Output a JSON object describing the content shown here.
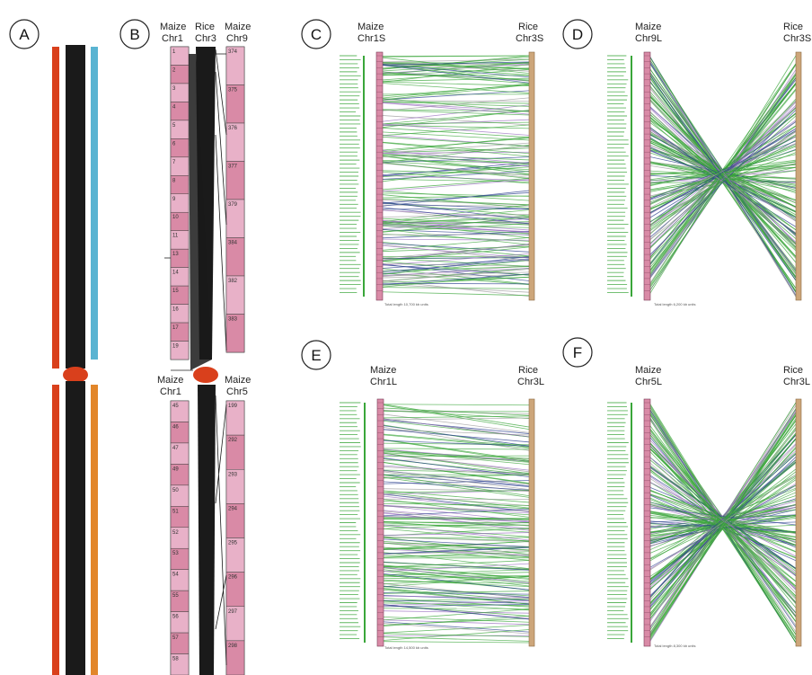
{
  "panels": [
    {
      "id": "A",
      "letter": "A"
    },
    {
      "id": "B",
      "letter": "B",
      "top_labels": [
        [
          "Maize",
          "Chr1"
        ],
        [
          "Rice",
          "Chr3"
        ],
        [
          "Maize",
          "Chr9"
        ]
      ],
      "bottom_labels": [
        [
          "Maize",
          "Chr1"
        ],
        [
          "Maize",
          "Chr5"
        ]
      ],
      "maize_chr1_short_bands": [
        "1",
        "2",
        "3",
        "4",
        "5",
        "6",
        "7",
        "8",
        "9",
        "10",
        "11",
        "13",
        "14",
        "15",
        "16",
        "17",
        "19"
      ],
      "maize_chr9_bands": [
        "374",
        "375",
        "376",
        "377",
        "379",
        "384",
        "382",
        "383"
      ],
      "maize_chr1_long_bands": [
        "45",
        "46",
        "47",
        "49",
        "50",
        "51",
        "52",
        "53",
        "54",
        "55",
        "56",
        "57",
        "58"
      ],
      "maize_chr5_bands": [
        "199",
        "292",
        "293",
        "294",
        "295",
        "296",
        "297",
        "298"
      ]
    },
    {
      "id": "C",
      "letter": "C",
      "left": [
        "Maize",
        "Chr1S"
      ],
      "right": [
        "Rice",
        "Chr3S"
      ],
      "footer": "Total length 10,700 kb units",
      "pattern": "parallel",
      "seed": 3
    },
    {
      "id": "D",
      "letter": "D",
      "left": [
        "Maize",
        "Chr9L"
      ],
      "right": [
        "Rice",
        "Chr3S"
      ],
      "footer": "Total length 6,200 kb units",
      "pattern": "inverted",
      "seed": 7
    },
    {
      "id": "E",
      "letter": "E",
      "left": [
        "Maize",
        "Chr1L"
      ],
      "right": [
        "Rice",
        "Chr3L"
      ],
      "footer": "Total length 14,500 kb units",
      "pattern": "parallel-slope",
      "seed": 11
    },
    {
      "id": "F",
      "letter": "F",
      "left": [
        "Maize",
        "Chr5L"
      ],
      "right": [
        "Rice",
        "Chr3L"
      ],
      "footer": "Total length 8,300 kb units",
      "pattern": "inverted",
      "seed": 19
    }
  ],
  "colors": {
    "chromosome_black": "#1a1a1a",
    "centromere": "#d9401c",
    "red_bar": "#d9401c",
    "blue_bar": "#5ab4d2",
    "orange_bar": "#e2862a",
    "pink_dark": "#d98aa6",
    "pink_light": "#e8b1c8",
    "rice_tan": "#cda67a",
    "green_line": "#3aa63a",
    "purple_line": "#9a6fc0",
    "navy_line": "#2b3f8f",
    "gray_line": "#9c9c9c"
  }
}
